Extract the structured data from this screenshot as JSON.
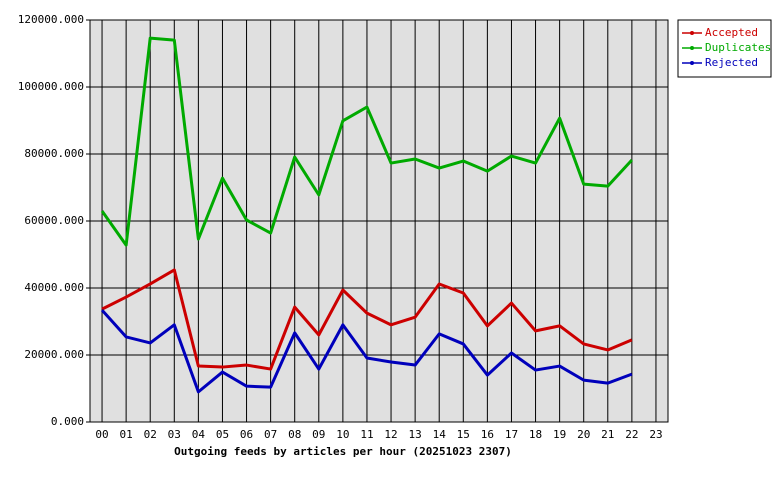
{
  "chart_data": {
    "type": "line",
    "title": "Outgoing feeds by articles per hour (20251023 2307)",
    "categories": [
      "00",
      "01",
      "02",
      "03",
      "04",
      "05",
      "06",
      "07",
      "08",
      "09",
      "10",
      "11",
      "12",
      "13",
      "14",
      "15",
      "16",
      "17",
      "18",
      "19",
      "20",
      "21",
      "22",
      "23"
    ],
    "series": [
      {
        "name": "Accepted",
        "color": "#cc0000",
        "values": [
          33700,
          37300,
          41200,
          45400,
          16700,
          16400,
          17000,
          15800,
          34300,
          26000,
          39400,
          32500,
          29000,
          31300,
          41200,
          38500,
          28700,
          35500,
          27200,
          28700,
          23300,
          21500,
          24500,
          null
        ]
      },
      {
        "name": "Duplicates",
        "color": "#00aa00",
        "values": [
          63000,
          52800,
          114600,
          114000,
          54600,
          72800,
          60300,
          56400,
          79100,
          67800,
          89900,
          94000,
          77300,
          78500,
          75800,
          77900,
          74900,
          79400,
          77300,
          90700,
          71000,
          70400,
          78200,
          null
        ]
      },
      {
        "name": "Rejected",
        "color": "#0000bb",
        "values": [
          33400,
          25400,
          23600,
          29000,
          9000,
          14900,
          10700,
          10400,
          26600,
          15800,
          29000,
          19100,
          17900,
          17000,
          26300,
          23300,
          14000,
          20600,
          15500,
          16700,
          12500,
          11600,
          14300,
          null
        ]
      }
    ],
    "ylim": [
      0,
      120000
    ],
    "yticks": [
      {
        "value": 0,
        "label": "0.000"
      },
      {
        "value": 20000,
        "label": "20000.000"
      },
      {
        "value": 40000,
        "label": "40000.000"
      },
      {
        "value": 60000,
        "label": "60000.000"
      },
      {
        "value": 80000,
        "label": "80000.000"
      },
      {
        "value": 100000,
        "label": "100000.000"
      },
      {
        "value": 120000,
        "label": "120000.000"
      }
    ],
    "grid": true,
    "legend": "top-right"
  }
}
